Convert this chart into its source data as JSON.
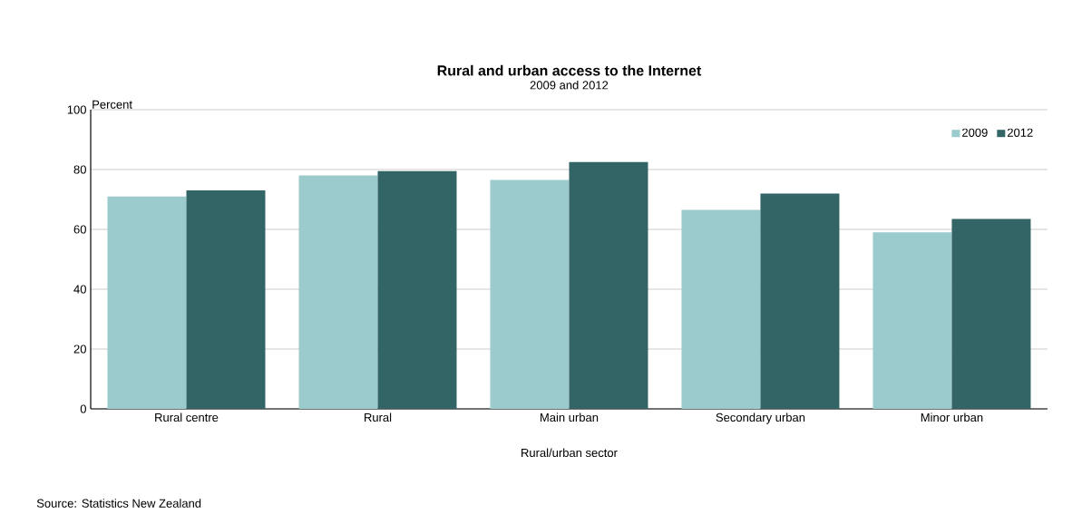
{
  "chart_data": {
    "type": "bar",
    "title": "Rural and urban access to the Internet",
    "subtitle": "2009 and 2012",
    "xlabel": "Rural/urban sector",
    "ylabel": "Percent",
    "categories": [
      "Rural centre",
      "Rural",
      "Main urban",
      "Secondary urban",
      "Minor urban"
    ],
    "series": [
      {
        "name": "2009",
        "color": "#9bcbcc",
        "values": [
          71,
          78,
          76.5,
          66.5,
          59
        ]
      },
      {
        "name": "2012",
        "color": "#336566",
        "values": [
          73,
          79.5,
          82.5,
          72,
          63.5
        ]
      }
    ],
    "ylim": [
      0,
      100
    ],
    "yticks": [
      0,
      20,
      40,
      60,
      80,
      100
    ],
    "grid": "y",
    "legend": "top right",
    "annotations": [
      "Source: Statistics New Zealand"
    ]
  }
}
